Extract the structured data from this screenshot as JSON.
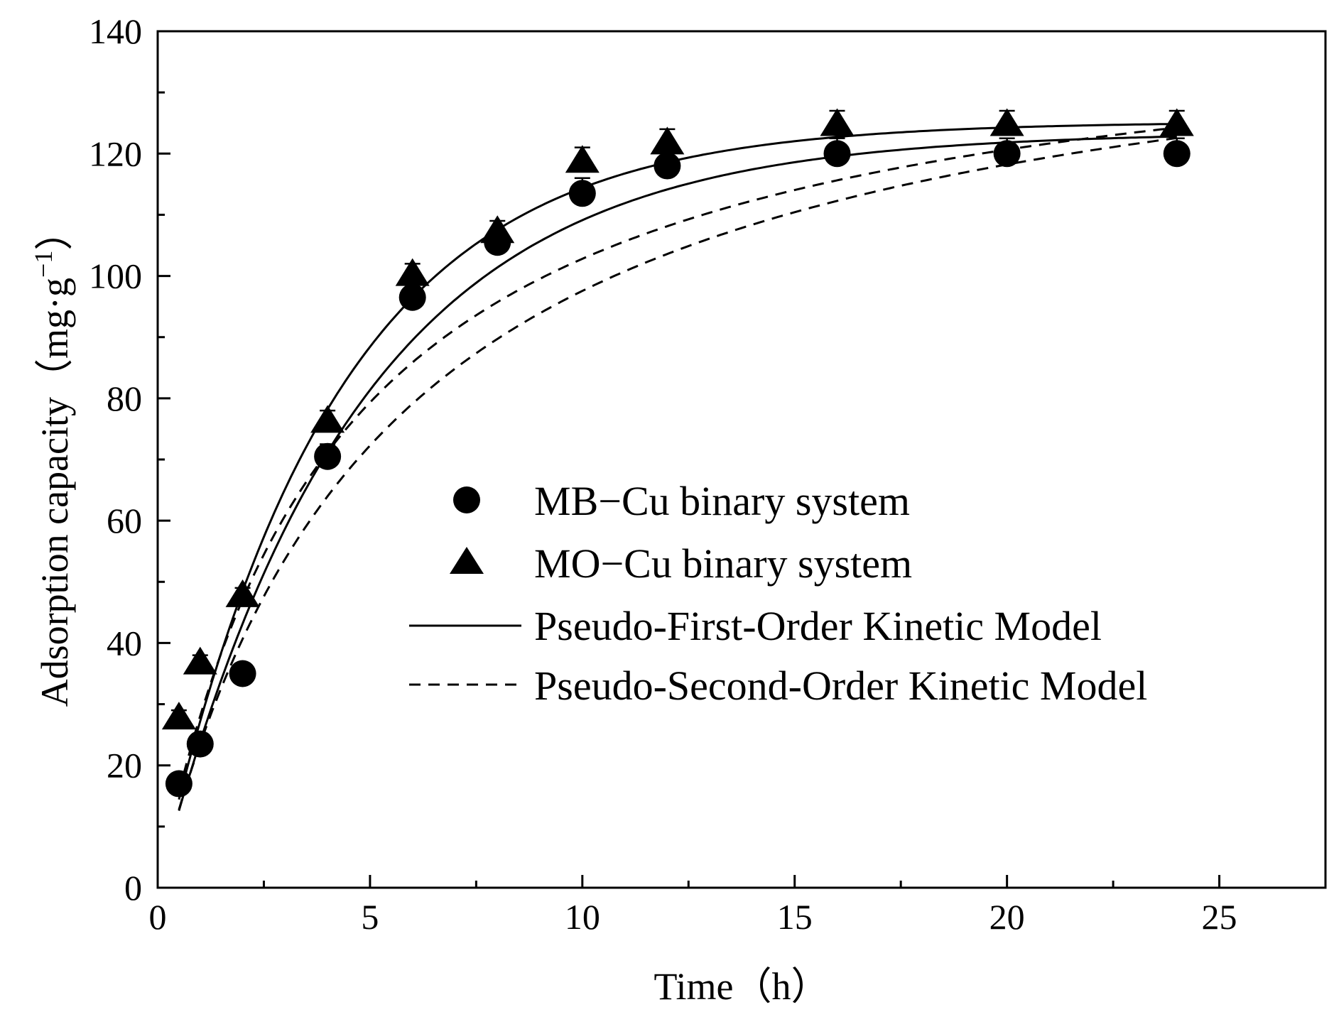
{
  "chart_data": {
    "type": "scatter",
    "title": "",
    "xlabel": "Time（h）",
    "ylabel_main": "Adsorption capacity（mg·g",
    "ylabel_sup": "−1",
    "ylabel_close": "）",
    "xlim": [
      0,
      27.5
    ],
    "ylim": [
      0,
      140
    ],
    "xticks": [
      0,
      5,
      10,
      15,
      20,
      25
    ],
    "yticks": [
      0,
      20,
      40,
      60,
      80,
      100,
      120,
      140
    ],
    "grid": false,
    "legend_position": "center-right",
    "series": [
      {
        "name": "MB−Cu binary system",
        "marker": "circle",
        "x": [
          0.5,
          1,
          2,
          4,
          6,
          8,
          10,
          12,
          16,
          20,
          24
        ],
        "y": [
          17,
          23.5,
          35,
          70.5,
          96.5,
          105.5,
          113.5,
          118,
          120,
          120,
          120
        ],
        "err": [
          1.5,
          1.5,
          1.5,
          2,
          2,
          2,
          2.5,
          2.5,
          2.5,
          2.5,
          2.5
        ]
      },
      {
        "name": "MO−Cu binary system",
        "marker": "triangle",
        "x": [
          0.5,
          1,
          2,
          4,
          6,
          8,
          10,
          12,
          16,
          20,
          24
        ],
        "y": [
          27.5,
          36.5,
          47.5,
          76,
          100,
          107,
          118.5,
          121.5,
          124.5,
          124.5,
          124.5
        ],
        "err": [
          1.5,
          1.5,
          1.5,
          2,
          2,
          2,
          2.5,
          2.5,
          2.5,
          2.5,
          2.5
        ]
      }
    ],
    "fits": [
      {
        "name": "Pseudo-First-Order Kinetic Model",
        "style": "solid",
        "qe": 123.5,
        "k": 0.215,
        "applies_to": "MB−Cu binary system"
      },
      {
        "name": "Pseudo-First-Order Kinetic Model",
        "style": "solid",
        "qe": 125.2,
        "k": 0.245,
        "applies_to": "MO−Cu binary system"
      },
      {
        "name": "Pseudo-Second-Order Kinetic Model",
        "style": "dashed",
        "qe": 150,
        "k": 0.00124,
        "applies_to": "MB−Cu binary system"
      },
      {
        "name": "Pseudo-Second-Order Kinetic Model",
        "style": "dashed",
        "qe": 146,
        "k": 0.00163,
        "applies_to": "MO−Cu binary system"
      }
    ],
    "legend": [
      {
        "label": "MB−Cu binary system",
        "symbol": "circle"
      },
      {
        "label": "MO−Cu binary system",
        "symbol": "triangle"
      },
      {
        "label": "Pseudo-First-Order Kinetic Model",
        "symbol": "solid-line"
      },
      {
        "label": "Pseudo-Second-Order Kinetic Model",
        "symbol": "dashed-line"
      }
    ]
  }
}
